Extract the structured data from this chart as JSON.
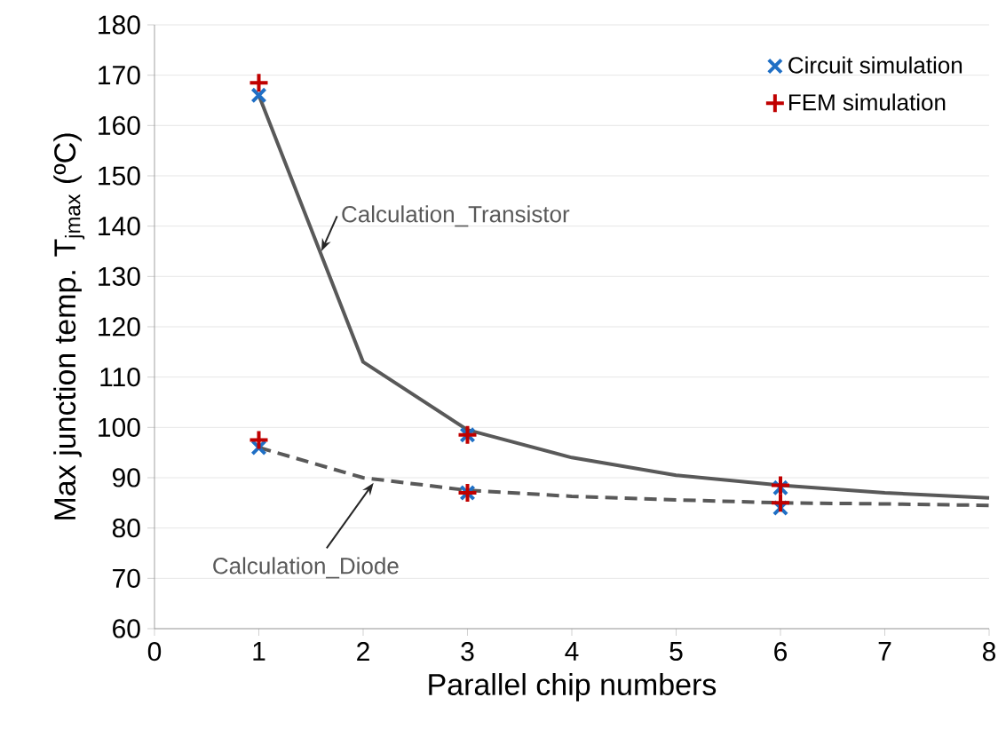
{
  "chart_data": {
    "type": "line",
    "xlabel": "Parallel chip numbers",
    "ylabel": "Max junction temp. T$_{jmax}$ (ºC)",
    "xlim": [
      0,
      8
    ],
    "ylim": [
      60,
      180
    ],
    "xticks": [
      0,
      1,
      2,
      3,
      4,
      5,
      6,
      7,
      8
    ],
    "yticks": [
      60,
      70,
      80,
      90,
      100,
      110,
      120,
      130,
      140,
      150,
      160,
      170,
      180
    ],
    "grid": "y",
    "legend": "top right",
    "series": [
      {
        "name": "Calculation_Transistor",
        "color": "#595959",
        "marker": "none",
        "line_style": "solid",
        "x": [
          1,
          2,
          3,
          4,
          5,
          6,
          7,
          8
        ],
        "values": [
          166,
          113,
          99.5,
          94,
          90.5,
          88.5,
          87,
          86
        ]
      },
      {
        "name": "Calculation_Diode",
        "color": "#595959",
        "marker": "none",
        "line_style": "dashed",
        "x": [
          1,
          2,
          3,
          4,
          5,
          6,
          7,
          8
        ],
        "values": [
          96,
          90,
          87.5,
          86.3,
          85.6,
          85,
          84.8,
          84.5
        ]
      },
      {
        "name": "Circuit simulation",
        "type": "scatter",
        "color": "#1f6fc5",
        "marker": "cross",
        "x": [
          1,
          1,
          3,
          3,
          6,
          6
        ],
        "values": [
          166,
          96,
          98.5,
          87,
          88,
          84
        ]
      },
      {
        "name": "FEM simulation",
        "type": "scatter",
        "color": "#c00000",
        "marker": "plus",
        "x": [
          1,
          1,
          3,
          3,
          6,
          6
        ],
        "values": [
          168.5,
          97.5,
          98.5,
          87,
          88.5,
          85
        ]
      }
    ]
  }
}
